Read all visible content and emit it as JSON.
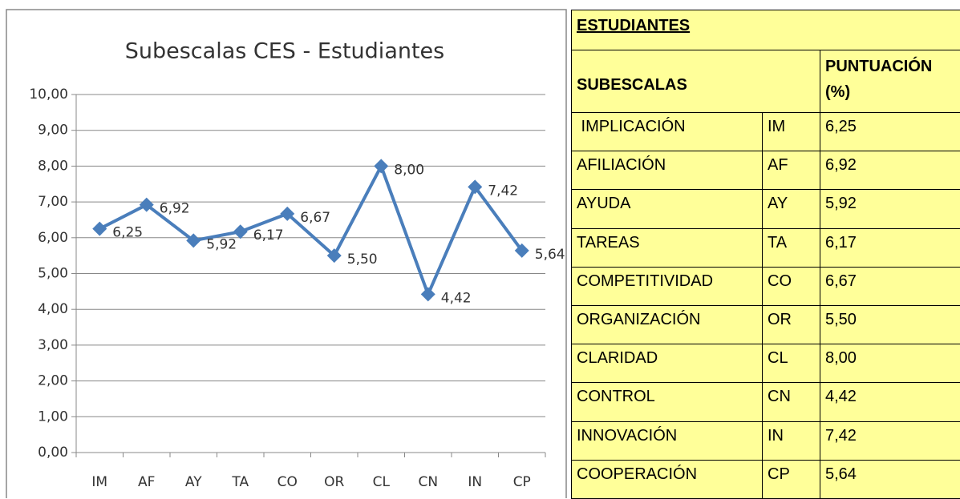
{
  "chart_data": {
    "type": "line",
    "title": "Subescalas CES - Estudiantes",
    "categories": [
      "IM",
      "AF",
      "AY",
      "TA",
      "CO",
      "OR",
      "CL",
      "CN",
      "IN",
      "CP"
    ],
    "values": [
      6.25,
      6.92,
      5.92,
      6.17,
      6.67,
      5.5,
      8.0,
      4.42,
      7.42,
      5.64
    ],
    "value_labels": [
      "6,25",
      "6,92",
      "5,92",
      "6,17",
      "6,67",
      "5,50",
      "8,00",
      "4,42",
      "7,42",
      "5,64"
    ],
    "color": "#4a7ebb",
    "ylim": [
      0,
      10
    ],
    "yticks": [
      {
        "value": 0,
        "label": "0,00"
      },
      {
        "value": 1,
        "label": "1,00"
      },
      {
        "value": 2,
        "label": "2,00"
      },
      {
        "value": 3,
        "label": "3,00"
      },
      {
        "value": 4,
        "label": "4,00"
      },
      {
        "value": 5,
        "label": "5,00"
      },
      {
        "value": 6,
        "label": "6,00"
      },
      {
        "value": 7,
        "label": "7,00"
      },
      {
        "value": 8,
        "label": "8,00"
      },
      {
        "value": 9,
        "label": "9,00"
      },
      {
        "value": 10,
        "label": "10,00"
      }
    ],
    "grid": true
  },
  "table": {
    "title": "ESTUDIANTES",
    "header": [
      "SUBESCALAS",
      "PUNTUACIÓN (%)"
    ],
    "rows": [
      [
        " IMPLICACIÓN",
        "IM",
        "6,25"
      ],
      [
        "AFILIACIÓN",
        "AF",
        "6,92"
      ],
      [
        "AYUDA",
        "AY",
        "5,92"
      ],
      [
        "TAREAS",
        "TA",
        "6,17"
      ],
      [
        "COMPETITIVIDAD",
        "CO",
        "6,67"
      ],
      [
        "ORGANIZACIÓN",
        "OR",
        "5,50"
      ],
      [
        "CLARIDAD",
        "CL",
        "8,00"
      ],
      [
        "CONTROL",
        "CN",
        "4,42"
      ],
      [
        "INNOVACIÓN",
        "IN",
        "7,42"
      ],
      [
        "COOPERACIÓN",
        "CP",
        "5,64"
      ]
    ]
  }
}
